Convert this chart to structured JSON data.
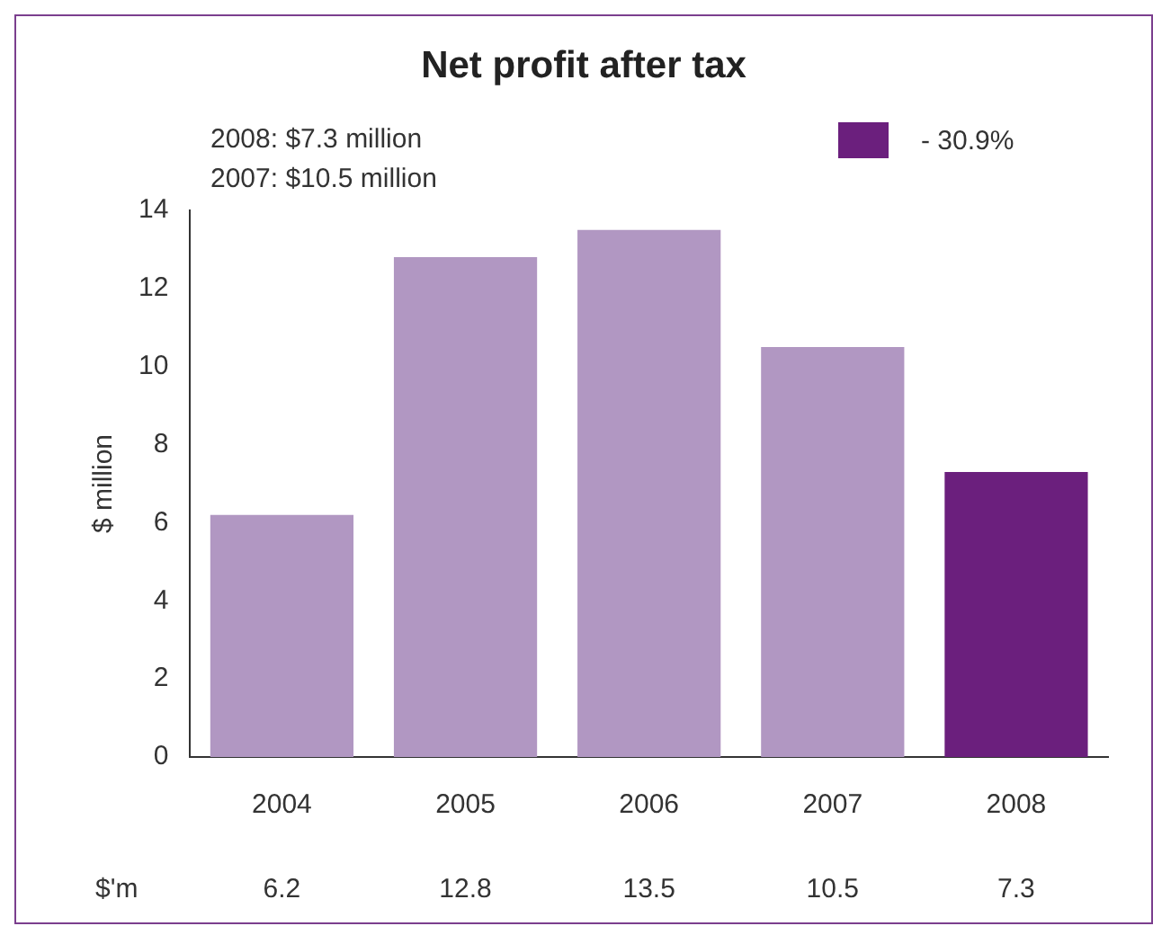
{
  "chart_data": {
    "type": "bar",
    "title": "Net profit after tax",
    "ylabel": "$ million",
    "annotations": [
      "2008: $7.3 million",
      "2007: $10.5 million",
      "- 30.9%",
      "$'m"
    ],
    "categories": [
      "2004",
      "2005",
      "2006",
      "2007",
      "2008"
    ],
    "values": [
      6.2,
      12.8,
      13.5,
      10.5,
      7.3
    ],
    "colors": [
      "#b197c2",
      "#b197c2",
      "#b197c2",
      "#b197c2",
      "#6b1f7d"
    ],
    "ylim": [
      0,
      14
    ],
    "yticks": [
      0,
      2,
      4,
      6,
      8,
      10,
      12,
      14
    ],
    "grid": false,
    "data_labels": true
  }
}
